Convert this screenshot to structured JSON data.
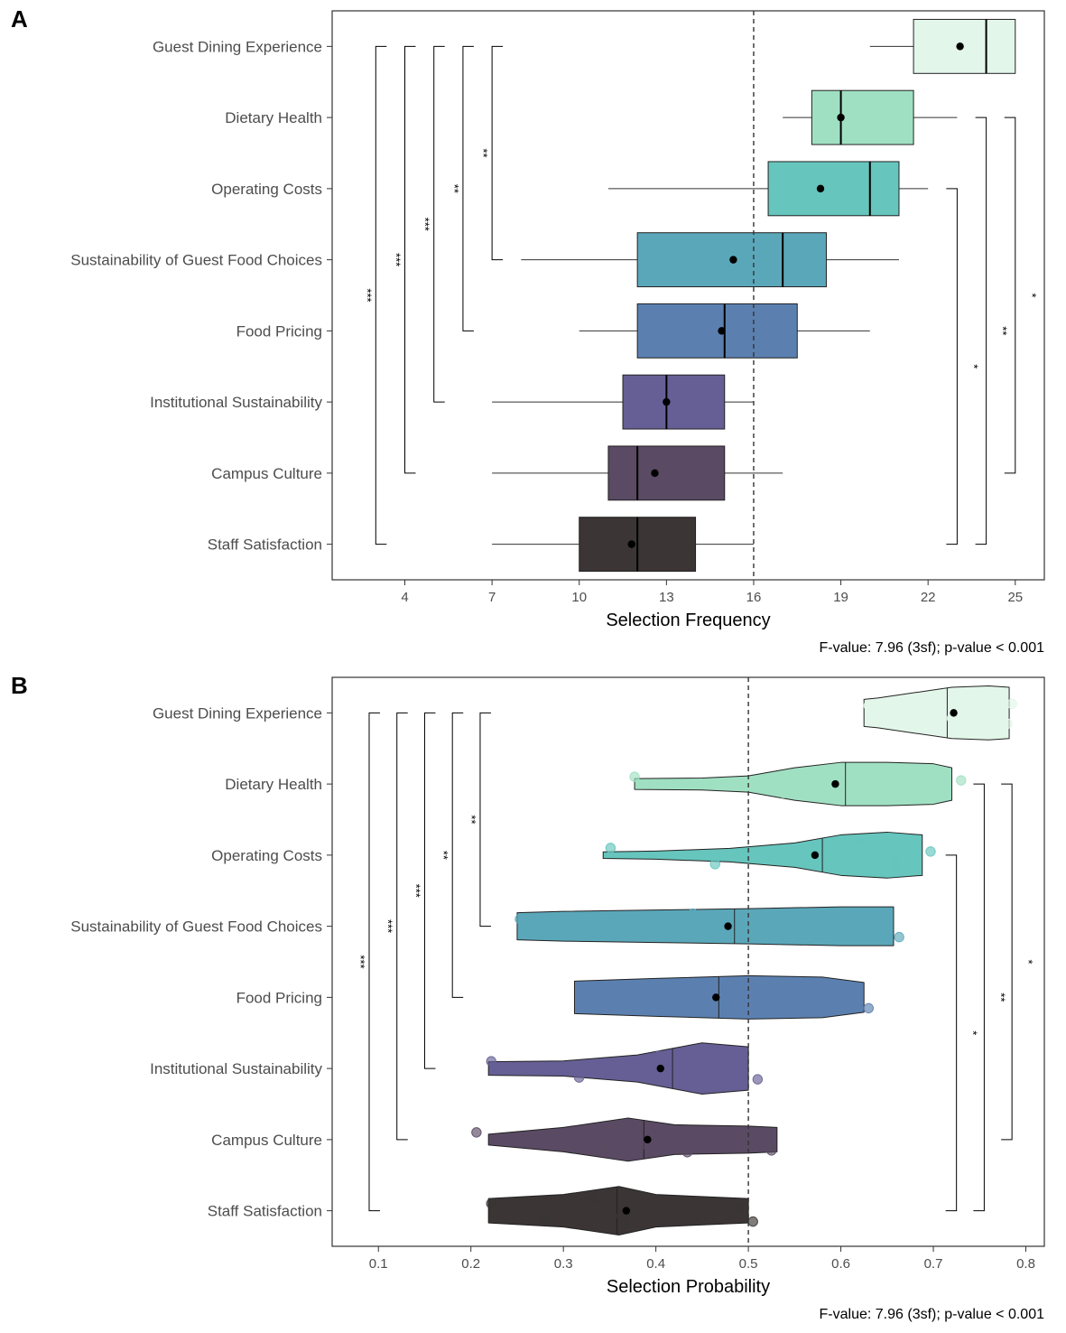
{
  "chart_data": [
    {
      "type": "box",
      "panel_label": "A",
      "xlabel": "Selection Frequency",
      "ylabel": "",
      "caption": "F-value: 7.96 (3sf); p-value < 0.001",
      "xlim": [
        1.5,
        26.0
      ],
      "xticks": [
        4,
        7,
        10,
        13,
        16,
        19,
        22,
        25
      ],
      "reference_line": 16,
      "grid": false,
      "categories": [
        "Guest Dining Experience",
        "Dietary Health",
        "Operating Costs",
        "Sustainability of Guest Food Choices",
        "Food Pricing",
        "Institutional Sustainability",
        "Campus Culture",
        "Staff Satisfaction"
      ],
      "colors": [
        "#e3f6ea",
        "#a0e0c2",
        "#66c5bd",
        "#5ba7ba",
        "#5b80b0",
        "#665f95",
        "#5a4a63",
        "#3b3535"
      ],
      "boxes": [
        {
          "whisker_low": 20,
          "q1": 21.5,
          "median": 24,
          "q3": 25,
          "whisker_high": 25,
          "mean": 23.1
        },
        {
          "whisker_low": 17,
          "q1": 18,
          "median": 19,
          "q3": 21.5,
          "whisker_high": 23,
          "mean": 19
        },
        {
          "whisker_low": 11,
          "q1": 16.5,
          "median": 20,
          "q3": 21,
          "whisker_high": 22,
          "mean": 18.3
        },
        {
          "whisker_low": 8,
          "q1": 12,
          "median": 17,
          "q3": 18.5,
          "whisker_high": 21,
          "mean": 15.3
        },
        {
          "whisker_low": 10,
          "q1": 12,
          "median": 15,
          "q3": 17.5,
          "whisker_high": 20,
          "mean": 14.9
        },
        {
          "whisker_low": 7,
          "q1": 11.5,
          "median": 13,
          "q3": 15,
          "whisker_high": 16,
          "mean": 13
        },
        {
          "whisker_low": 7,
          "q1": 11,
          "median": 12,
          "q3": 15,
          "whisker_high": 17,
          "mean": 12.6
        },
        {
          "whisker_low": 7,
          "q1": 10,
          "median": 12,
          "q3": 14,
          "whisker_high": 16,
          "mean": 11.8
        }
      ],
      "brackets": [
        {
          "from": "Guest Dining Experience",
          "to": "Staff Satisfaction",
          "label": "***",
          "side": "left",
          "x": 3
        },
        {
          "from": "Guest Dining Experience",
          "to": "Campus Culture",
          "label": "***",
          "side": "left",
          "x": 4
        },
        {
          "from": "Guest Dining Experience",
          "to": "Institutional Sustainability",
          "label": "***",
          "side": "left",
          "x": 5
        },
        {
          "from": "Guest Dining Experience",
          "to": "Food Pricing",
          "label": "**",
          "side": "left",
          "x": 6
        },
        {
          "from": "Guest Dining Experience",
          "to": "Sustainability of Guest Food Choices",
          "label": "**",
          "side": "left",
          "x": 7
        },
        {
          "from": "Operating Costs",
          "to": "Staff Satisfaction",
          "label": "*",
          "side": "right",
          "x": 23
        },
        {
          "from": "Dietary Health",
          "to": "Staff Satisfaction",
          "label": "**",
          "side": "right",
          "x": 24
        },
        {
          "from": "Dietary Health",
          "to": "Campus Culture",
          "label": "*",
          "side": "right",
          "x": 25
        }
      ]
    },
    {
      "type": "violin",
      "panel_label": "B",
      "xlabel": "Selection Probability",
      "ylabel": "",
      "caption": "F-value: 7.96 (3sf); p-value < 0.001",
      "xlim": [
        0.05,
        0.82
      ],
      "xticks": [
        0.1,
        0.2,
        0.3,
        0.4,
        0.5,
        0.6,
        0.7,
        0.8
      ],
      "reference_line": 0.5,
      "grid": false,
      "categories": [
        "Guest Dining Experience",
        "Dietary Health",
        "Operating Costs",
        "Sustainability of Guest Food Choices",
        "Food Pricing",
        "Institutional Sustainability",
        "Campus Culture",
        "Staff Satisfaction"
      ],
      "colors": [
        "#e3f6ea",
        "#a0e0c2",
        "#66c5bd",
        "#5ba7ba",
        "#5b80b0",
        "#665f95",
        "#5a4a63",
        "#3b3535"
      ],
      "violins": [
        {
          "min": 0.625,
          "max": 0.782,
          "median": 0.715,
          "mean": 0.722,
          "peak": 0.74,
          "profile": [
            [
              0.625,
              0.5
            ],
            [
              0.64,
              0.55
            ],
            [
              0.68,
              0.75
            ],
            [
              0.72,
              0.95
            ],
            [
              0.76,
              1.0
            ],
            [
              0.782,
              0.95
            ]
          ],
          "points": [
            0.63,
            0.66,
            0.69,
            0.72,
            0.75,
            0.77,
            0.78,
            0.785
          ]
        },
        {
          "min": 0.377,
          "max": 0.72,
          "median": 0.605,
          "mean": 0.594,
          "profile": [
            [
              0.377,
              0.2
            ],
            [
              0.45,
              0.22
            ],
            [
              0.5,
              0.3
            ],
            [
              0.55,
              0.6
            ],
            [
              0.6,
              0.8
            ],
            [
              0.65,
              0.8
            ],
            [
              0.7,
              0.75
            ],
            [
              0.72,
              0.6
            ]
          ],
          "points": [
            0.377,
            0.538,
            0.594,
            0.65,
            0.687,
            0.73
          ]
        },
        {
          "min": 0.343,
          "max": 0.688,
          "median": 0.58,
          "mean": 0.572,
          "profile": [
            [
              0.343,
              0.12
            ],
            [
              0.4,
              0.15
            ],
            [
              0.48,
              0.25
            ],
            [
              0.55,
              0.45
            ],
            [
              0.6,
              0.75
            ],
            [
              0.65,
              0.85
            ],
            [
              0.688,
              0.75
            ]
          ],
          "points": [
            0.351,
            0.464,
            0.62,
            0.658,
            0.66,
            0.697
          ]
        },
        {
          "min": 0.25,
          "max": 0.657,
          "median": 0.485,
          "mean": 0.478,
          "profile": [
            [
              0.25,
              0.5
            ],
            [
              0.3,
              0.55
            ],
            [
              0.4,
              0.6
            ],
            [
              0.5,
              0.65
            ],
            [
              0.6,
              0.72
            ],
            [
              0.657,
              0.72
            ]
          ],
          "points": [
            0.253,
            0.308,
            0.44,
            0.53,
            0.534,
            0.637,
            0.663
          ]
        },
        {
          "min": 0.312,
          "max": 0.625,
          "median": 0.468,
          "mean": 0.465,
          "profile": [
            [
              0.312,
              0.6
            ],
            [
              0.4,
              0.7
            ],
            [
              0.5,
              0.8
            ],
            [
              0.58,
              0.75
            ],
            [
              0.625,
              0.55
            ]
          ],
          "points": [
            0.32,
            0.334,
            0.415,
            0.475,
            0.535,
            0.568,
            0.63
          ]
        },
        {
          "min": 0.219,
          "max": 0.5,
          "median": 0.418,
          "mean": 0.405,
          "profile": [
            [
              0.219,
              0.25
            ],
            [
              0.3,
              0.28
            ],
            [
              0.38,
              0.5
            ],
            [
              0.45,
              0.95
            ],
            [
              0.5,
              0.8
            ]
          ],
          "points": [
            0.222,
            0.317,
            0.403,
            0.468,
            0.47,
            0.472,
            0.51
          ]
        },
        {
          "min": 0.219,
          "max": 0.531,
          "median": 0.387,
          "mean": 0.391,
          "profile": [
            [
              0.219,
              0.2
            ],
            [
              0.3,
              0.45
            ],
            [
              0.37,
              0.8
            ],
            [
              0.42,
              0.55
            ],
            [
              0.5,
              0.5
            ],
            [
              0.531,
              0.45
            ]
          ],
          "points": [
            0.206,
            0.346,
            0.354,
            0.384,
            0.434,
            0.49,
            0.525
          ]
        },
        {
          "min": 0.219,
          "max": 0.5,
          "median": 0.358,
          "mean": 0.368,
          "profile": [
            [
              0.219,
              0.45
            ],
            [
              0.3,
              0.6
            ],
            [
              0.36,
              0.9
            ],
            [
              0.4,
              0.6
            ],
            [
              0.5,
              0.45
            ]
          ],
          "points": [
            0.222,
            0.28,
            0.332,
            0.363,
            0.367,
            0.49,
            0.505
          ]
        }
      ],
      "brackets": [
        {
          "from": "Guest Dining Experience",
          "to": "Staff Satisfaction",
          "label": "***",
          "side": "left",
          "x": 0.09
        },
        {
          "from": "Guest Dining Experience",
          "to": "Campus Culture",
          "label": "***",
          "side": "left",
          "x": 0.12
        },
        {
          "from": "Guest Dining Experience",
          "to": "Institutional Sustainability",
          "label": "***",
          "side": "left",
          "x": 0.15
        },
        {
          "from": "Guest Dining Experience",
          "to": "Food Pricing",
          "label": "**",
          "side": "left",
          "x": 0.18
        },
        {
          "from": "Guest Dining Experience",
          "to": "Sustainability of Guest Food Choices",
          "label": "**",
          "side": "left",
          "x": 0.21
        },
        {
          "from": "Operating Costs",
          "to": "Staff Satisfaction",
          "label": "*",
          "side": "right",
          "x": 0.725
        },
        {
          "from": "Dietary Health",
          "to": "Staff Satisfaction",
          "label": "**",
          "side": "right",
          "x": 0.755
        },
        {
          "from": "Dietary Health",
          "to": "Campus Culture",
          "label": "*",
          "side": "right",
          "x": 0.785
        }
      ]
    }
  ]
}
